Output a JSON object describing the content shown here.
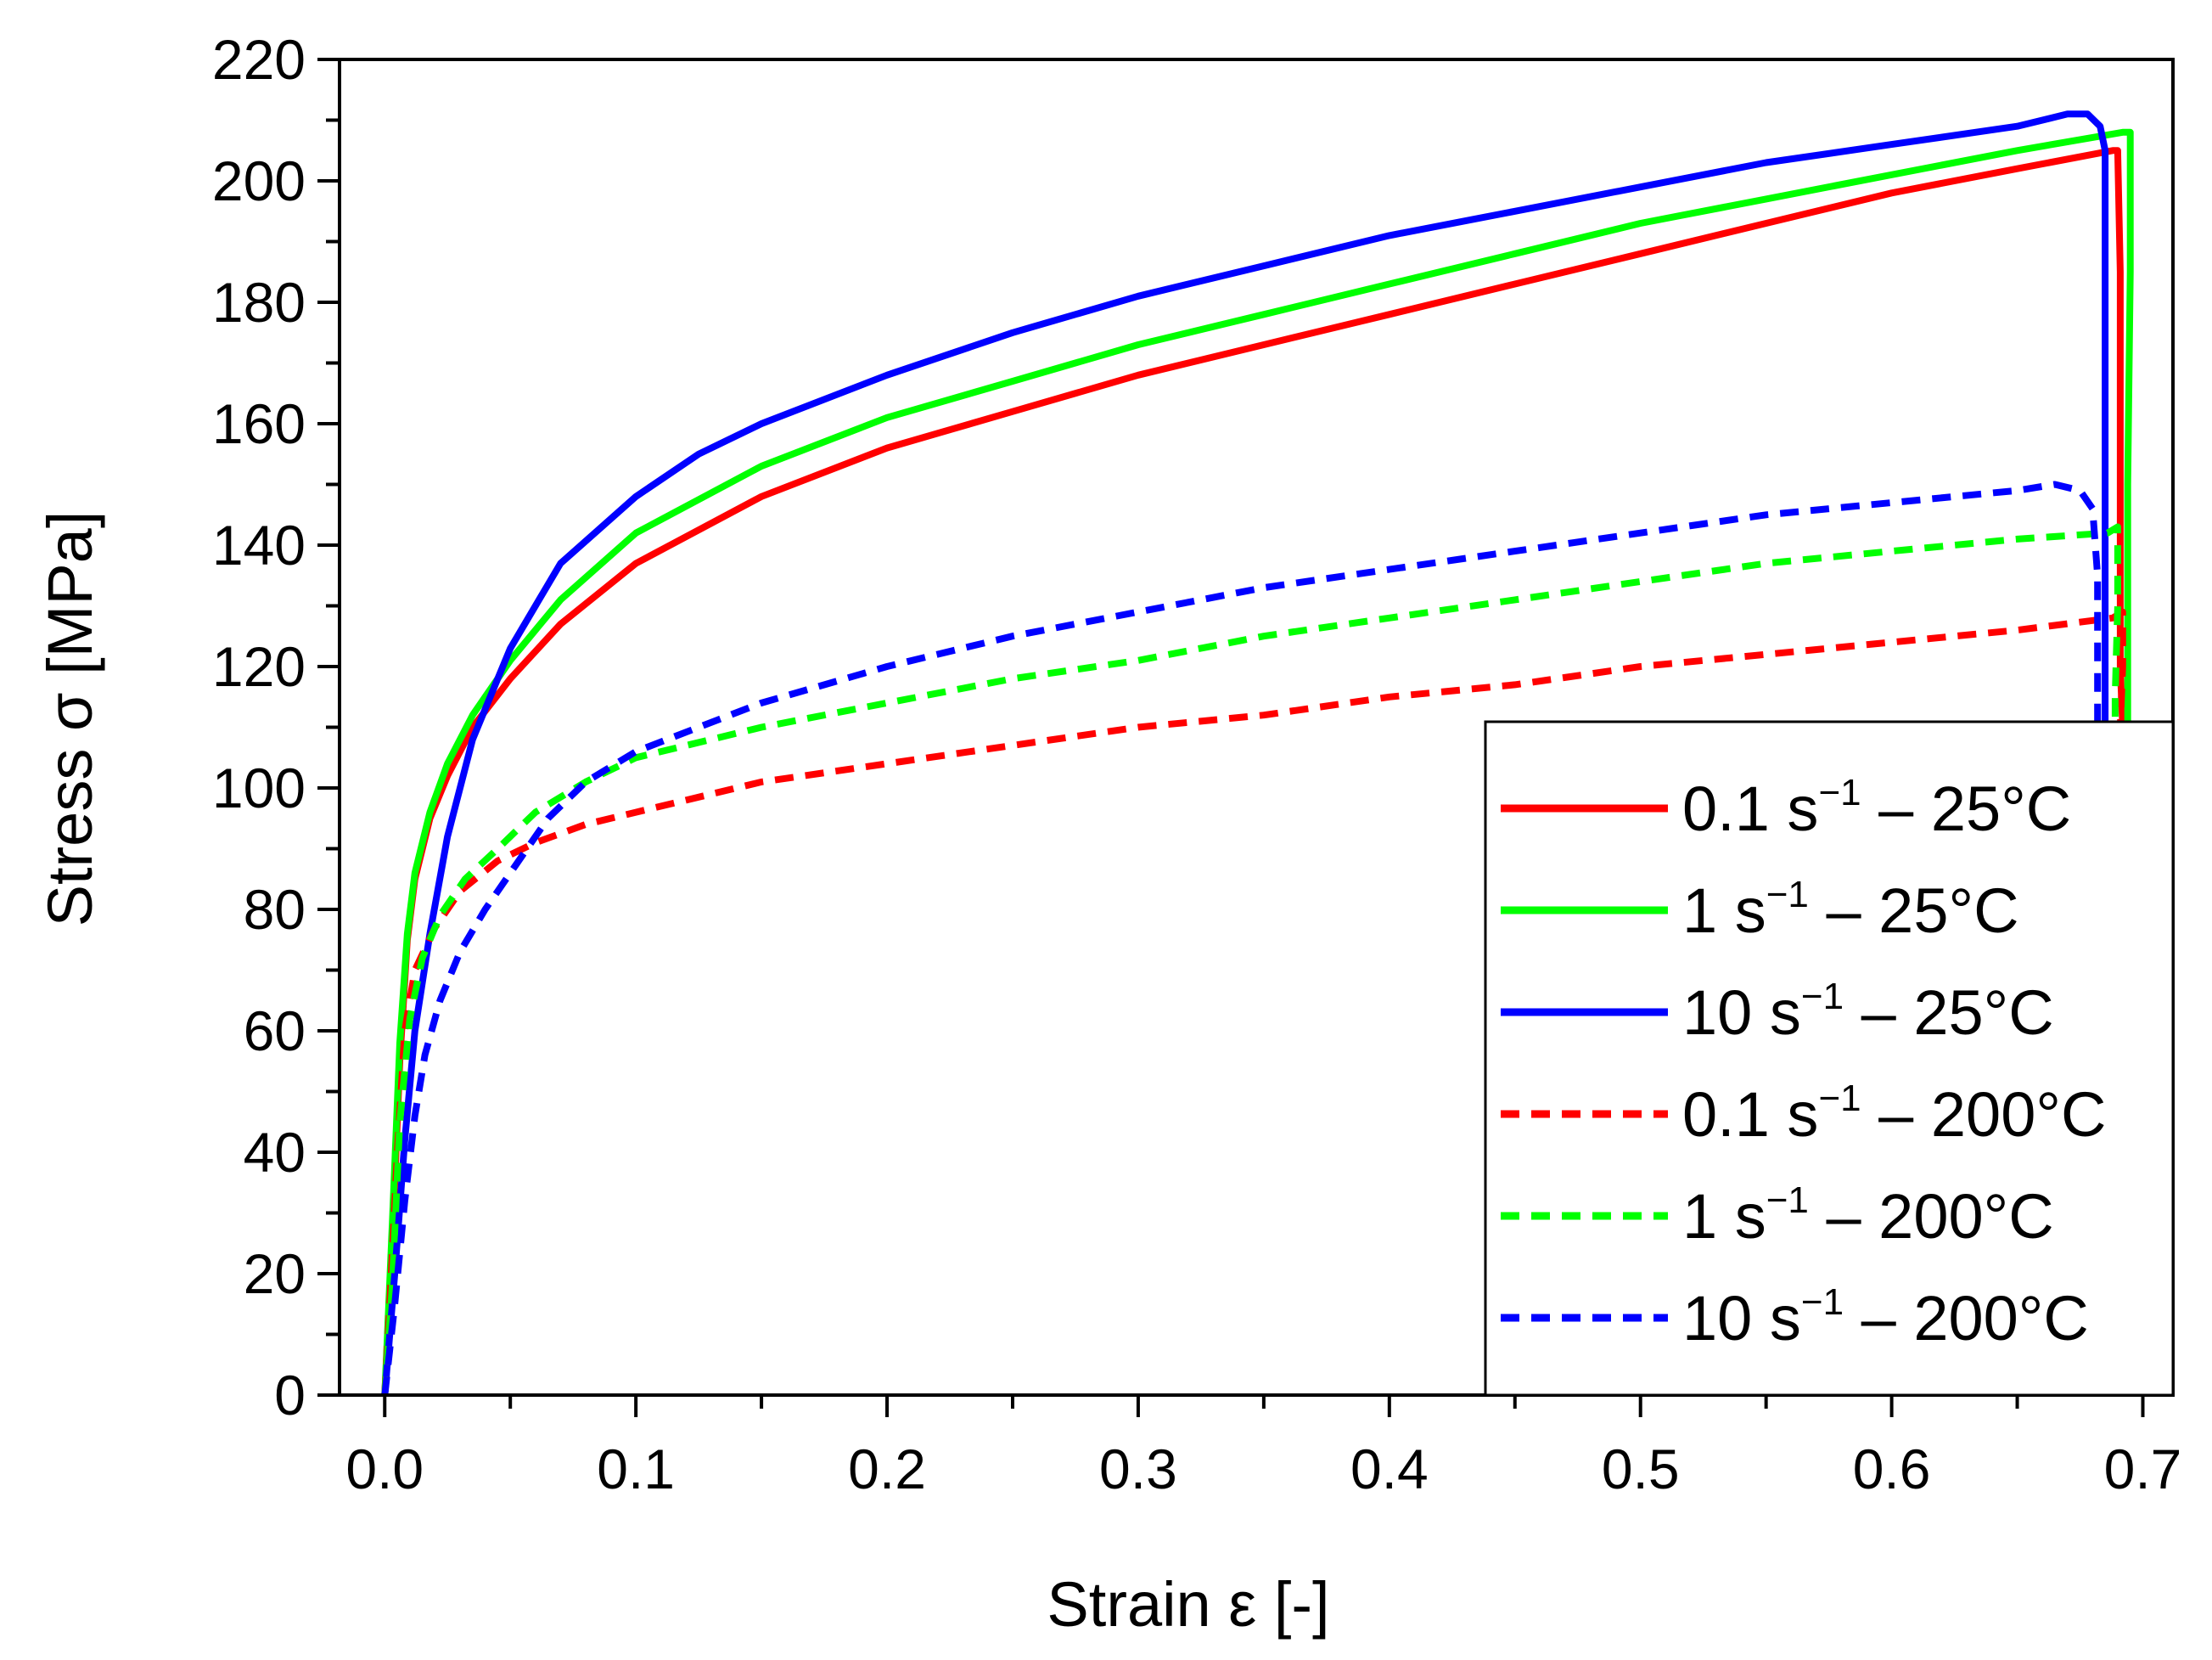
{
  "chart_data": {
    "type": "line",
    "title": "",
    "xlabel": "Strain ε [-]",
    "ylabel": "Stress σ [MPa]",
    "xlim": [
      -0.018,
      0.712
    ],
    "ylim": [
      0,
      220
    ],
    "xticks": [
      0.0,
      0.1,
      0.2,
      0.3,
      0.4,
      0.5,
      0.6,
      0.7
    ],
    "xtick_labels": [
      "0.0",
      "0.1",
      "0.2",
      "0.3",
      "0.4",
      "0.5",
      "0.6",
      "0.7"
    ],
    "yticks": [
      0,
      20,
      40,
      60,
      80,
      100,
      120,
      140,
      160,
      180,
      200,
      220
    ],
    "ytick_labels": [
      "0",
      "20",
      "40",
      "60",
      "80",
      "100",
      "120",
      "140",
      "160",
      "180",
      "200",
      "220"
    ],
    "grid": false,
    "legend_position": "bottom-right",
    "series": [
      {
        "name": "0.1 s⁻¹ – 25°C",
        "label_main": "0.1 s",
        "label_sup": "−1",
        "label_rest": " – 25°C",
        "color": "#ff0000",
        "style": "solid",
        "points": [
          [
            0.0,
            0
          ],
          [
            0.003,
            25
          ],
          [
            0.006,
            55
          ],
          [
            0.009,
            75
          ],
          [
            0.012,
            85
          ],
          [
            0.018,
            95
          ],
          [
            0.025,
            102
          ],
          [
            0.035,
            110
          ],
          [
            0.05,
            118
          ],
          [
            0.07,
            127
          ],
          [
            0.1,
            137
          ],
          [
            0.15,
            148
          ],
          [
            0.2,
            156
          ],
          [
            0.25,
            162
          ],
          [
            0.3,
            168
          ],
          [
            0.35,
            173
          ],
          [
            0.4,
            178
          ],
          [
            0.45,
            183
          ],
          [
            0.5,
            188
          ],
          [
            0.55,
            193
          ],
          [
            0.6,
            198
          ],
          [
            0.65,
            202
          ],
          [
            0.688,
            205
          ],
          [
            0.69,
            205
          ],
          [
            0.691,
            185
          ],
          [
            0.691,
            150
          ],
          [
            0.691,
            120
          ],
          [
            0.692,
            110
          ]
        ]
      },
      {
        "name": "1 s⁻¹ – 25°C",
        "label_main": "1 s",
        "label_sup": "−1",
        "label_rest": " – 25°C",
        "color": "#00ff00",
        "style": "solid",
        "points": [
          [
            0.0,
            0
          ],
          [
            0.003,
            28
          ],
          [
            0.006,
            58
          ],
          [
            0.009,
            76
          ],
          [
            0.012,
            86
          ],
          [
            0.018,
            96
          ],
          [
            0.025,
            104
          ],
          [
            0.035,
            112
          ],
          [
            0.05,
            121
          ],
          [
            0.07,
            131
          ],
          [
            0.1,
            142
          ],
          [
            0.15,
            153
          ],
          [
            0.2,
            161
          ],
          [
            0.25,
            167
          ],
          [
            0.3,
            173
          ],
          [
            0.35,
            178
          ],
          [
            0.4,
            183
          ],
          [
            0.45,
            188
          ],
          [
            0.5,
            193
          ],
          [
            0.55,
            197
          ],
          [
            0.6,
            201
          ],
          [
            0.65,
            205
          ],
          [
            0.692,
            208
          ],
          [
            0.695,
            208
          ],
          [
            0.695,
            185
          ],
          [
            0.694,
            150
          ],
          [
            0.694,
            120
          ],
          [
            0.694,
            110
          ]
        ]
      },
      {
        "name": "10 s⁻¹ – 25°C",
        "label_main": "10 s",
        "label_sup": "−1",
        "label_rest": " – 25°C",
        "color": "#0000ff",
        "style": "solid",
        "points": [
          [
            0.0,
            0
          ],
          [
            0.004,
            20
          ],
          [
            0.008,
            42
          ],
          [
            0.012,
            60
          ],
          [
            0.018,
            76
          ],
          [
            0.025,
            92
          ],
          [
            0.035,
            108
          ],
          [
            0.05,
            123
          ],
          [
            0.07,
            137
          ],
          [
            0.1,
            148
          ],
          [
            0.125,
            155
          ],
          [
            0.15,
            160
          ],
          [
            0.2,
            168
          ],
          [
            0.25,
            175
          ],
          [
            0.3,
            181
          ],
          [
            0.35,
            186
          ],
          [
            0.4,
            191
          ],
          [
            0.45,
            195
          ],
          [
            0.5,
            199
          ],
          [
            0.55,
            203
          ],
          [
            0.6,
            206
          ],
          [
            0.65,
            209
          ],
          [
            0.67,
            211
          ],
          [
            0.678,
            211
          ],
          [
            0.683,
            209
          ],
          [
            0.685,
            205
          ],
          [
            0.685,
            180
          ],
          [
            0.685,
            140
          ],
          [
            0.685,
            110
          ]
        ]
      },
      {
        "name": "0.1 s⁻¹ – 200°C",
        "label_main": "0.1 s",
        "label_sup": "−1",
        "label_rest": " – 200°C",
        "color": "#ff0000",
        "style": "dashed",
        "points": [
          [
            0.0,
            0
          ],
          [
            0.002,
            15
          ],
          [
            0.005,
            40
          ],
          [
            0.008,
            60
          ],
          [
            0.012,
            70
          ],
          [
            0.02,
            77
          ],
          [
            0.03,
            83
          ],
          [
            0.045,
            88
          ],
          [
            0.06,
            91
          ],
          [
            0.08,
            94
          ],
          [
            0.1,
            96
          ],
          [
            0.15,
            101
          ],
          [
            0.2,
            104
          ],
          [
            0.25,
            107
          ],
          [
            0.3,
            110
          ],
          [
            0.35,
            112
          ],
          [
            0.4,
            115
          ],
          [
            0.45,
            117
          ],
          [
            0.5,
            120
          ],
          [
            0.55,
            122
          ],
          [
            0.6,
            124
          ],
          [
            0.65,
            126
          ],
          [
            0.688,
            128
          ],
          [
            0.692,
            129
          ],
          [
            0.692,
            120
          ],
          [
            0.691,
            110
          ]
        ]
      },
      {
        "name": "1 s⁻¹ – 200°C",
        "label_main": "1 s",
        "label_sup": "−1",
        "label_rest": " – 200°C",
        "color": "#00ff00",
        "style": "dashed",
        "points": [
          [
            0.0,
            0
          ],
          [
            0.003,
            18
          ],
          [
            0.006,
            45
          ],
          [
            0.01,
            62
          ],
          [
            0.015,
            72
          ],
          [
            0.022,
            79
          ],
          [
            0.032,
            85
          ],
          [
            0.045,
            90
          ],
          [
            0.06,
            96
          ],
          [
            0.08,
            101
          ],
          [
            0.1,
            105
          ],
          [
            0.15,
            110
          ],
          [
            0.2,
            114
          ],
          [
            0.25,
            118
          ],
          [
            0.3,
            121
          ],
          [
            0.35,
            125
          ],
          [
            0.4,
            128
          ],
          [
            0.45,
            131
          ],
          [
            0.5,
            134
          ],
          [
            0.55,
            137
          ],
          [
            0.6,
            139
          ],
          [
            0.65,
            141
          ],
          [
            0.686,
            142
          ],
          [
            0.69,
            143
          ],
          [
            0.69,
            130
          ],
          [
            0.689,
            115
          ],
          [
            0.689,
            108
          ]
        ]
      },
      {
        "name": "10 s⁻¹ – 200°C",
        "label_main": "10 s",
        "label_sup": "−1",
        "label_rest": " – 200°C",
        "color": "#0000ff",
        "style": "dashed",
        "points": [
          [
            0.0,
            0
          ],
          [
            0.004,
            15
          ],
          [
            0.008,
            32
          ],
          [
            0.012,
            46
          ],
          [
            0.016,
            56
          ],
          [
            0.022,
            65
          ],
          [
            0.03,
            73
          ],
          [
            0.04,
            80
          ],
          [
            0.05,
            86
          ],
          [
            0.065,
            95
          ],
          [
            0.08,
            101
          ],
          [
            0.1,
            106
          ],
          [
            0.125,
            110
          ],
          [
            0.15,
            114
          ],
          [
            0.2,
            120
          ],
          [
            0.25,
            125
          ],
          [
            0.3,
            129
          ],
          [
            0.35,
            133
          ],
          [
            0.4,
            136
          ],
          [
            0.45,
            139
          ],
          [
            0.5,
            142
          ],
          [
            0.55,
            145
          ],
          [
            0.6,
            147
          ],
          [
            0.65,
            149
          ],
          [
            0.665,
            150
          ],
          [
            0.675,
            149
          ],
          [
            0.68,
            146
          ],
          [
            0.682,
            135
          ],
          [
            0.682,
            120
          ],
          [
            0.682,
            108
          ]
        ]
      }
    ]
  }
}
